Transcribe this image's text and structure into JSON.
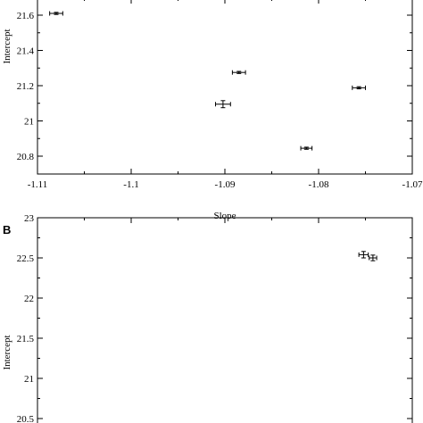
{
  "chart_data": [
    {
      "type": "scatter",
      "xlabel": "Slope",
      "ylabel": "Intercept",
      "xlim": [
        -1.11,
        -1.07
      ],
      "ylim": [
        20.7,
        21.67
      ],
      "x_ticks": [
        -1.11,
        -1.1,
        -1.09,
        -1.08,
        -1.07
      ],
      "x_tick_labels": [
        "-1.11",
        "-1.1",
        "-1.09",
        "-1.08",
        "-1.07"
      ],
      "y_ticks": [
        20.8,
        21,
        21.2,
        21.4,
        21.6
      ],
      "y_tick_labels": [
        "20.8",
        "21",
        "21.2",
        "21.4",
        "21.6"
      ],
      "points": [
        {
          "x": -1.108,
          "y": 21.61,
          "xerr": 0.0007,
          "yerr": 0.006
        },
        {
          "x": -1.0885,
          "y": 21.275,
          "xerr": 0.0007,
          "yerr": 0.006
        },
        {
          "x": -1.0902,
          "y": 21.095,
          "xerr": 0.0008,
          "yerr": 0.02
        },
        {
          "x": -1.0757,
          "y": 21.188,
          "xerr": 0.0007,
          "yerr": 0.006
        },
        {
          "x": -1.0813,
          "y": 20.845,
          "xerr": 0.0006,
          "yerr": 0.006
        }
      ]
    },
    {
      "type": "scatter",
      "panel_label": "B",
      "ylabel": "Intercept",
      "xlim": [
        -1.11,
        -1.07
      ],
      "ylim": [
        20.5,
        23
      ],
      "x_ticks": [
        -1.11,
        -1.1,
        -1.09,
        -1.08,
        -1.07
      ],
      "y_ticks": [
        20.5,
        21,
        21.5,
        22,
        22.5,
        23
      ],
      "y_tick_labels": [
        "20.5",
        "21",
        "21.5",
        "22",
        "22.5",
        "23"
      ],
      "points": [
        {
          "x": -1.0752,
          "y": 22.54,
          "xerr": 0.0005,
          "yerr": 0.04
        },
        {
          "x": -1.0742,
          "y": 22.5,
          "xerr": 0.0004,
          "yerr": 0.035
        }
      ]
    }
  ]
}
